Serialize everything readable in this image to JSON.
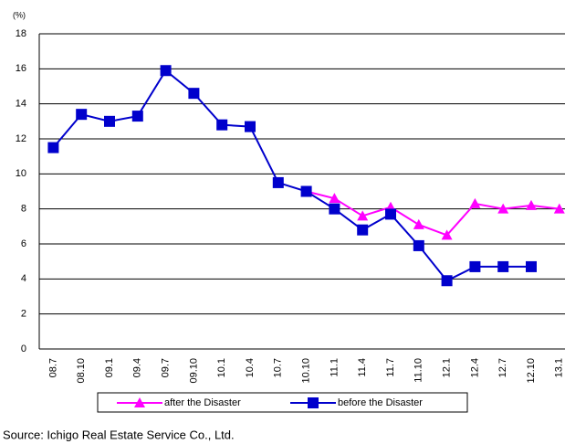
{
  "chart_data": {
    "type": "line",
    "y_unit": "(%)",
    "source": "Source: Ichigo Real Estate Service Co., Ltd.",
    "categories": [
      "08.7",
      "08.10",
      "09.1",
      "09.4",
      "09.7",
      "09.10",
      "10.1",
      "10.4",
      "10.7",
      "10.10",
      "11.1",
      "11.4",
      "11.7",
      "11.10",
      "12.1",
      "12.4",
      "12.7",
      "12.10",
      "13.1"
    ],
    "series": [
      {
        "name": "after the Disaster",
        "color": "#ff00ff",
        "marker": "triangle",
        "values": [
          null,
          null,
          null,
          null,
          null,
          null,
          null,
          null,
          null,
          9.0,
          8.6,
          7.6,
          8.1,
          7.1,
          6.5,
          8.3,
          8.0,
          8.2,
          8.0
        ]
      },
      {
        "name": "before the Disaster",
        "color": "#0000cc",
        "marker": "square",
        "values": [
          11.5,
          13.4,
          13.0,
          13.3,
          15.9,
          14.6,
          12.8,
          12.7,
          9.5,
          9.0,
          8.0,
          6.8,
          7.7,
          5.9,
          3.9,
          4.7,
          4.7,
          4.7,
          null
        ]
      }
    ],
    "ylim": [
      0,
      18
    ],
    "yticks": [
      0,
      2,
      4,
      6,
      8,
      10,
      12,
      14,
      16,
      18
    ],
    "grid": true
  }
}
